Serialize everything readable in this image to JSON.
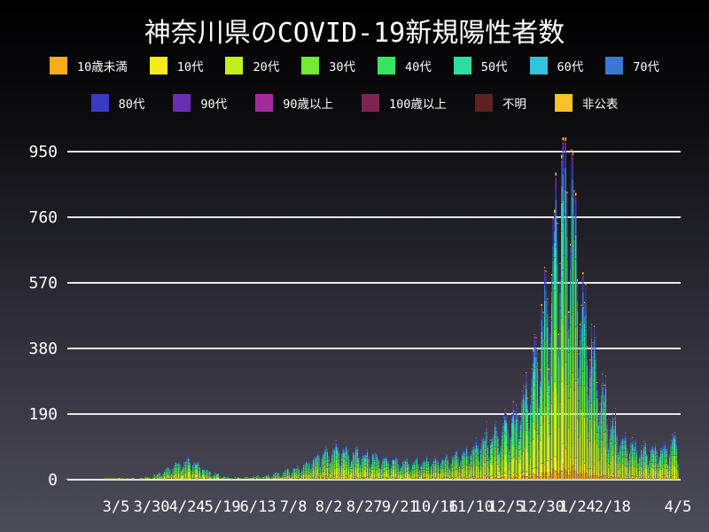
{
  "page": {
    "title": "神奈川県のCOVID-19新規陽性者数"
  },
  "colors": {
    "background_top": "#000000",
    "background_bottom": "#4C4B58",
    "grid_line": "#E8E8EA",
    "text": "#FFFFFF"
  },
  "legend": {
    "rows": [
      [
        {
          "label": "10歳未満",
          "color": "#F8AC1B"
        },
        {
          "label": "10代",
          "color": "#F5EC1A"
        },
        {
          "label": "20代",
          "color": "#C3EF20"
        },
        {
          "label": "30代",
          "color": "#70EA33"
        },
        {
          "label": "40代",
          "color": "#38E45F"
        },
        {
          "label": "50代",
          "color": "#2EDCA2"
        },
        {
          "label": "60代",
          "color": "#35C2DE"
        },
        {
          "label": "70代",
          "color": "#3B77D4"
        }
      ],
      [
        {
          "label": "80代",
          "color": "#3A39C3"
        },
        {
          "label": "90代",
          "color": "#6A2EB4"
        },
        {
          "label": "90歳以上",
          "color": "#A02C9C"
        },
        {
          "label": "100歳以上",
          "color": "#802350"
        },
        {
          "label": "不明",
          "color": "#5E2121"
        },
        {
          "label": "非公表",
          "color": "#F9C02C"
        }
      ]
    ]
  },
  "chart_data": {
    "type": "bar",
    "stacked": true,
    "title": "神奈川県のCOVID-19新規陽性者数",
    "xlabel": "",
    "ylabel": "",
    "grid": true,
    "y_axis": {
      "ticks": [
        0,
        190,
        380,
        570,
        760,
        950
      ],
      "ylim": [
        0,
        991
      ]
    },
    "x_axis": {
      "start_date": "2020-01-30",
      "end_date": "2021-04-05",
      "total_days": 432,
      "tick_labels": [
        {
          "label": "3/5",
          "day": 35
        },
        {
          "label": "3/30",
          "day": 60
        },
        {
          "label": "4/24",
          "day": 85
        },
        {
          "label": "5/19",
          "day": 110
        },
        {
          "label": "6/13",
          "day": 135
        },
        {
          "label": "7/8",
          "day": 160
        },
        {
          "label": "8/2",
          "day": 185
        },
        {
          "label": "8/27",
          "day": 210
        },
        {
          "label": "9/21",
          "day": 235
        },
        {
          "label": "10/16",
          "day": 260
        },
        {
          "label": "11/10",
          "day": 285
        },
        {
          "label": "12/5",
          "day": 310
        },
        {
          "label": "12/30",
          "day": 335
        },
        {
          "label": "1/24",
          "day": 360
        },
        {
          "label": "2/18",
          "day": 385
        },
        {
          "label": "4/5",
          "day": 431
        }
      ]
    },
    "series": [
      {
        "name": "10歳未満",
        "color": "#F8AC1B",
        "fraction": 0.035
      },
      {
        "name": "10代",
        "color": "#F5EC1A",
        "fraction": 0.055
      },
      {
        "name": "20代",
        "color": "#C3EF20",
        "fraction": 0.24
      },
      {
        "name": "30代",
        "color": "#70EA33",
        "fraction": 0.165
      },
      {
        "name": "40代",
        "color": "#38E45F",
        "fraction": 0.15
      },
      {
        "name": "50代",
        "color": "#2EDCA2",
        "fraction": 0.125
      },
      {
        "name": "60代",
        "color": "#35C2DE",
        "fraction": 0.075
      },
      {
        "name": "70代",
        "color": "#3B77D4",
        "fraction": 0.06
      },
      {
        "name": "80代",
        "color": "#3A39C3",
        "fraction": 0.05
      },
      {
        "name": "90代",
        "color": "#6A2EB4",
        "fraction": 0.02
      },
      {
        "name": "90歳以上",
        "color": "#A02C9C",
        "fraction": 0.008
      },
      {
        "name": "100歳以上",
        "color": "#802350",
        "fraction": 0.002
      },
      {
        "name": "不明",
        "color": "#5E2121",
        "fraction": 0.005
      },
      {
        "name": "非公表",
        "color": "#F9C02C",
        "fraction": 0.01
      }
    ],
    "daily_total_envelope": [
      [
        0,
        3
      ],
      [
        2,
        0
      ],
      [
        24,
        0
      ],
      [
        28,
        2
      ],
      [
        35,
        3
      ],
      [
        42,
        5
      ],
      [
        49,
        7
      ],
      [
        55,
        10
      ],
      [
        60,
        14
      ],
      [
        64,
        20
      ],
      [
        68,
        28
      ],
      [
        72,
        38
      ],
      [
        76,
        48
      ],
      [
        80,
        55
      ],
      [
        85,
        62
      ],
      [
        88,
        58
      ],
      [
        92,
        48
      ],
      [
        96,
        38
      ],
      [
        100,
        28
      ],
      [
        104,
        20
      ],
      [
        108,
        15
      ],
      [
        112,
        11
      ],
      [
        116,
        9
      ],
      [
        120,
        8
      ],
      [
        124,
        9
      ],
      [
        128,
        10
      ],
      [
        132,
        11
      ],
      [
        136,
        12
      ],
      [
        140,
        14
      ],
      [
        144,
        16
      ],
      [
        148,
        20
      ],
      [
        152,
        24
      ],
      [
        156,
        28
      ],
      [
        160,
        33
      ],
      [
        164,
        40
      ],
      [
        168,
        48
      ],
      [
        172,
        58
      ],
      [
        176,
        70
      ],
      [
        180,
        80
      ],
      [
        184,
        90
      ],
      [
        188,
        100
      ],
      [
        192,
        97
      ],
      [
        196,
        92
      ],
      [
        200,
        88
      ],
      [
        204,
        85
      ],
      [
        208,
        80
      ],
      [
        212,
        76
      ],
      [
        216,
        72
      ],
      [
        220,
        68
      ],
      [
        224,
        64
      ],
      [
        228,
        61
      ],
      [
        232,
        59
      ],
      [
        236,
        57
      ],
      [
        240,
        55
      ],
      [
        244,
        54
      ],
      [
        248,
        55
      ],
      [
        252,
        57
      ],
      [
        256,
        59
      ],
      [
        260,
        61
      ],
      [
        264,
        64
      ],
      [
        268,
        68
      ],
      [
        272,
        73
      ],
      [
        276,
        79
      ],
      [
        280,
        86
      ],
      [
        284,
        95
      ],
      [
        288,
        105
      ],
      [
        292,
        117
      ],
      [
        296,
        128
      ],
      [
        300,
        138
      ],
      [
        304,
        148
      ],
      [
        308,
        160
      ],
      [
        312,
        175
      ],
      [
        316,
        195
      ],
      [
        320,
        220
      ],
      [
        324,
        258
      ],
      [
        328,
        305
      ],
      [
        331,
        360
      ],
      [
        334,
        430
      ],
      [
        337,
        490
      ],
      [
        340,
        540
      ],
      [
        343,
        650
      ],
      [
        346,
        800
      ],
      [
        349,
        890
      ],
      [
        352,
        950
      ],
      [
        354,
        920
      ],
      [
        356,
        860
      ],
      [
        358,
        800
      ],
      [
        360,
        650
      ],
      [
        362,
        580
      ],
      [
        364,
        520
      ],
      [
        367,
        460
      ],
      [
        370,
        400
      ],
      [
        373,
        340
      ],
      [
        376,
        290
      ],
      [
        379,
        245
      ],
      [
        382,
        205
      ],
      [
        385,
        172
      ],
      [
        388,
        150
      ],
      [
        391,
        135
      ],
      [
        394,
        122
      ],
      [
        397,
        112
      ],
      [
        400,
        104
      ],
      [
        403,
        98
      ],
      [
        406,
        94
      ],
      [
        409,
        91
      ],
      [
        412,
        90
      ],
      [
        415,
        91
      ],
      [
        418,
        94
      ],
      [
        421,
        99
      ],
      [
        424,
        105
      ],
      [
        427,
        112
      ],
      [
        431,
        108
      ]
    ],
    "weekly_pattern": [
      0.92,
      0.55,
      0.78,
      1.02,
      1.08,
      1.13,
      1.18
    ],
    "start_weekday_index": 4
  }
}
